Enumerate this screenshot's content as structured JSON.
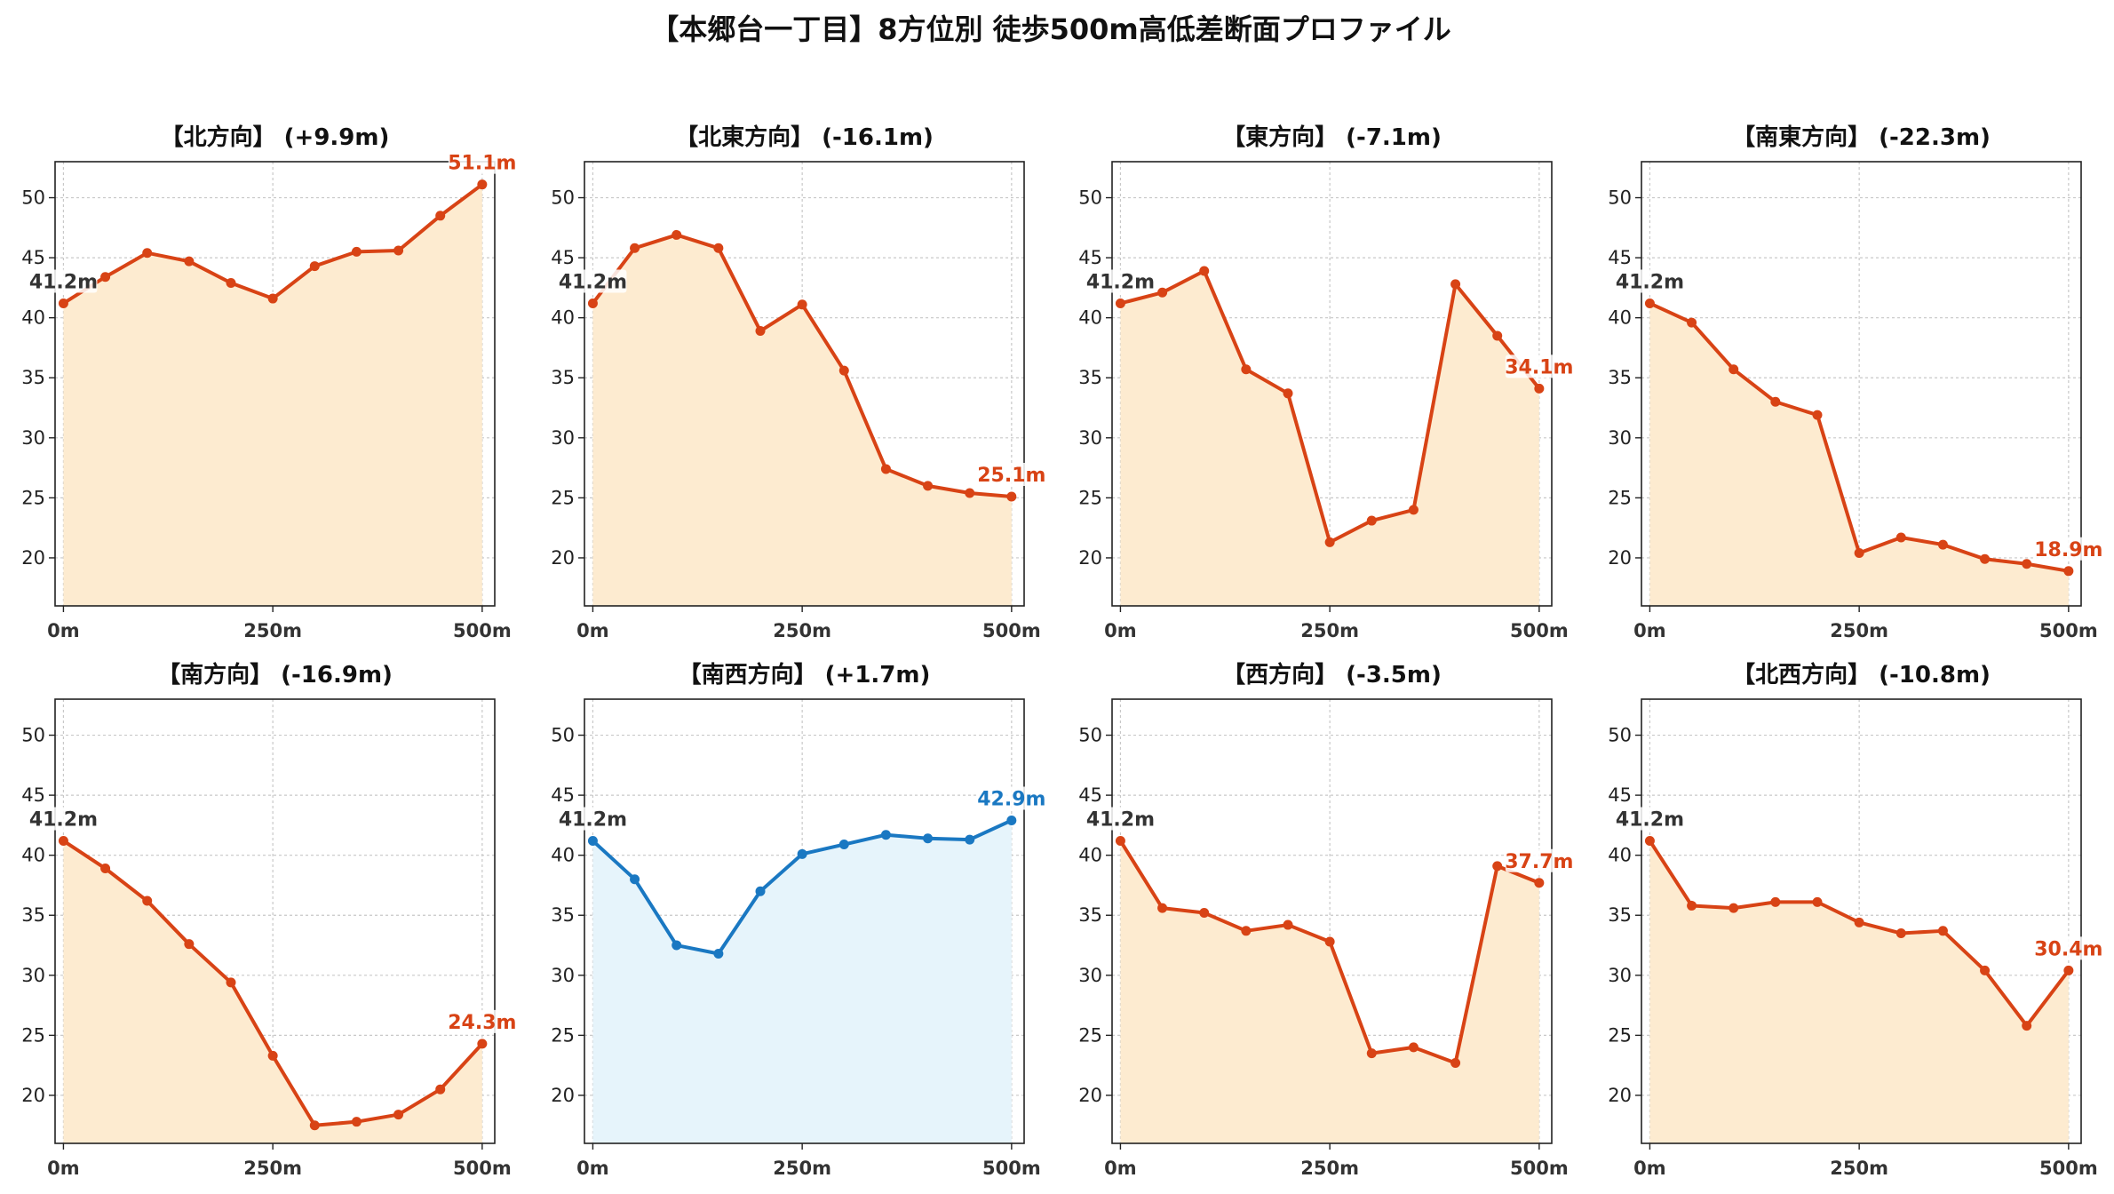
{
  "figure": {
    "title": "【本郷台一丁目】8方位別 徒歩500m高低差断面プロファイル"
  },
  "chart_data": [
    {
      "type": "line",
      "title": "【北方向】 (+9.9m)",
      "x": [
        0,
        50,
        100,
        150,
        200,
        250,
        300,
        350,
        400,
        450,
        500
      ],
      "values": [
        41.2,
        43.4,
        45.4,
        44.7,
        42.9,
        41.6,
        44.3,
        45.5,
        45.6,
        48.5,
        51.1
      ],
      "start_label": "41.2m",
      "end_label": "51.1m",
      "color": "#d84315",
      "fill": "#fdebd0",
      "ylim": [
        16,
        53
      ],
      "yticks": [
        20,
        25,
        30,
        35,
        40,
        45,
        50
      ],
      "xticks": [
        "0m",
        "250m",
        "500m"
      ],
      "grid": true
    },
    {
      "type": "line",
      "title": "【北東方向】 (-16.1m)",
      "x": [
        0,
        50,
        100,
        150,
        200,
        250,
        300,
        350,
        400,
        450,
        500
      ],
      "values": [
        41.2,
        45.8,
        46.9,
        45.8,
        38.9,
        41.1,
        35.6,
        27.4,
        26.0,
        25.4,
        25.1
      ],
      "start_label": "41.2m",
      "end_label": "25.1m",
      "color": "#d84315",
      "fill": "#fdebd0",
      "ylim": [
        16,
        53
      ],
      "yticks": [
        20,
        25,
        30,
        35,
        40,
        45,
        50
      ],
      "xticks": [
        "0m",
        "250m",
        "500m"
      ],
      "grid": true
    },
    {
      "type": "line",
      "title": "【東方向】 (-7.1m)",
      "x": [
        0,
        50,
        100,
        150,
        200,
        250,
        300,
        350,
        400,
        450,
        500
      ],
      "values": [
        41.2,
        42.1,
        43.9,
        35.7,
        33.7,
        21.3,
        23.1,
        24.0,
        42.8,
        38.5,
        34.1
      ],
      "start_label": "41.2m",
      "end_label": "34.1m",
      "color": "#d84315",
      "fill": "#fdebd0",
      "ylim": [
        16,
        53
      ],
      "yticks": [
        20,
        25,
        30,
        35,
        40,
        45,
        50
      ],
      "xticks": [
        "0m",
        "250m",
        "500m"
      ],
      "grid": true
    },
    {
      "type": "line",
      "title": "【南東方向】 (-22.3m)",
      "x": [
        0,
        50,
        100,
        150,
        200,
        250,
        300,
        350,
        400,
        450,
        500
      ],
      "values": [
        41.2,
        39.6,
        35.7,
        33.0,
        31.9,
        20.4,
        21.7,
        21.1,
        19.9,
        19.5,
        18.9
      ],
      "start_label": "41.2m",
      "end_label": "18.9m",
      "color": "#d84315",
      "fill": "#fdebd0",
      "ylim": [
        16,
        53
      ],
      "yticks": [
        20,
        25,
        30,
        35,
        40,
        45,
        50
      ],
      "xticks": [
        "0m",
        "250m",
        "500m"
      ],
      "grid": true
    },
    {
      "type": "line",
      "title": "【南方向】 (-16.9m)",
      "x": [
        0,
        50,
        100,
        150,
        200,
        250,
        300,
        350,
        400,
        450,
        500
      ],
      "values": [
        41.2,
        38.9,
        36.2,
        32.6,
        29.4,
        23.3,
        17.5,
        17.8,
        18.4,
        20.5,
        24.3
      ],
      "start_label": "41.2m",
      "end_label": "24.3m",
      "color": "#d84315",
      "fill": "#fdebd0",
      "ylim": [
        16,
        53
      ],
      "yticks": [
        20,
        25,
        30,
        35,
        40,
        45,
        50
      ],
      "xticks": [
        "0m",
        "250m",
        "500m"
      ],
      "grid": true
    },
    {
      "type": "line",
      "title": "【南西方向】 (+1.7m)",
      "x": [
        0,
        50,
        100,
        150,
        200,
        250,
        300,
        350,
        400,
        450,
        500
      ],
      "values": [
        41.2,
        38.0,
        32.5,
        31.8,
        37.0,
        40.1,
        40.9,
        41.7,
        41.4,
        41.3,
        42.9
      ],
      "start_label": "41.2m",
      "end_label": "42.9m",
      "color": "#1a78c2",
      "fill": "#e6f4fb",
      "ylim": [
        16,
        53
      ],
      "yticks": [
        20,
        25,
        30,
        35,
        40,
        45,
        50
      ],
      "xticks": [
        "0m",
        "250m",
        "500m"
      ],
      "grid": true
    },
    {
      "type": "line",
      "title": "【西方向】 (-3.5m)",
      "x": [
        0,
        50,
        100,
        150,
        200,
        250,
        300,
        350,
        400,
        450,
        500
      ],
      "values": [
        41.2,
        35.6,
        35.2,
        33.7,
        34.2,
        32.8,
        23.5,
        24.0,
        22.7,
        39.1,
        37.7
      ],
      "start_label": "41.2m",
      "end_label": "37.7m",
      "color": "#d84315",
      "fill": "#fdebd0",
      "ylim": [
        16,
        53
      ],
      "yticks": [
        20,
        25,
        30,
        35,
        40,
        45,
        50
      ],
      "xticks": [
        "0m",
        "250m",
        "500m"
      ],
      "grid": true
    },
    {
      "type": "line",
      "title": "【北西方向】 (-10.8m)",
      "x": [
        0,
        50,
        100,
        150,
        200,
        250,
        300,
        350,
        400,
        450,
        500
      ],
      "values": [
        41.2,
        35.8,
        35.6,
        36.1,
        36.1,
        34.4,
        33.5,
        33.7,
        30.4,
        25.8,
        30.4
      ],
      "start_label": "41.2m",
      "end_label": "30.4m",
      "color": "#d84315",
      "fill": "#fdebd0",
      "ylim": [
        16,
        53
      ],
      "yticks": [
        20,
        25,
        30,
        35,
        40,
        45,
        50
      ],
      "xticks": [
        "0m",
        "250m",
        "500m"
      ],
      "grid": true
    }
  ]
}
